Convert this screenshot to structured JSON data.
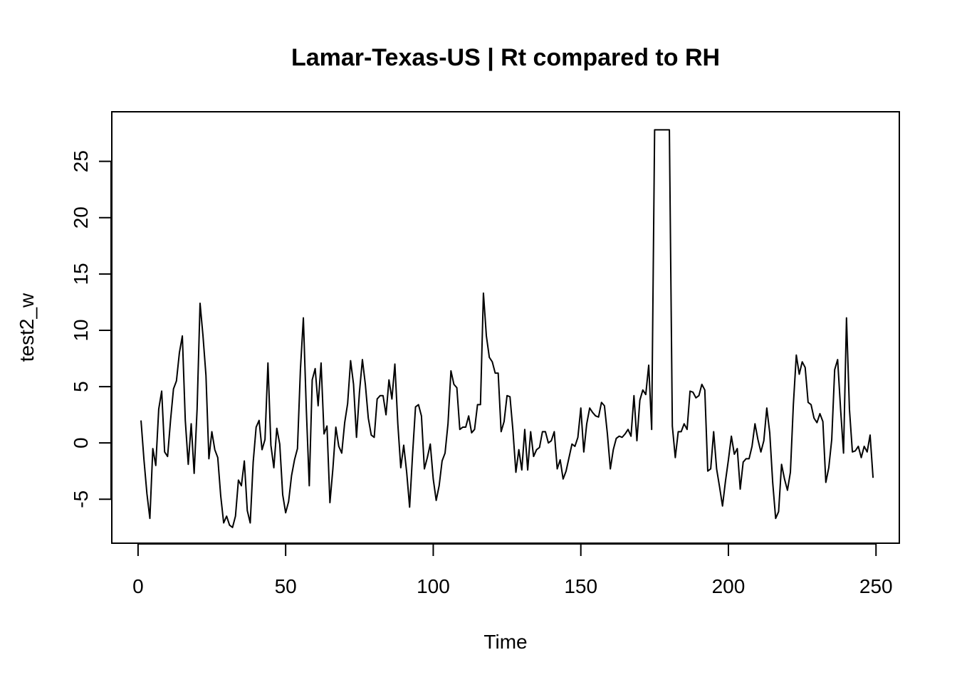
{
  "chart_data": {
    "type": "line",
    "title": "Lamar-Texas-US | Rt compared to RH",
    "xlabel": "Time",
    "ylabel": "test2_w",
    "xlim": [
      -8.9,
      257.9
    ],
    "ylim": [
      -8.9,
      29.4
    ],
    "x_ticks": [
      0,
      50,
      100,
      150,
      200,
      250
    ],
    "y_ticks": [
      -5,
      0,
      5,
      10,
      15,
      20,
      25
    ],
    "x_tick_labels": [
      "0",
      "50",
      "100",
      "150",
      "200",
      "250"
    ],
    "y_tick_labels": [
      "-5",
      "0",
      "5",
      "10",
      "15",
      "20",
      "25"
    ],
    "grid": false,
    "legend": "none",
    "line_color": "#000000",
    "series": [
      {
        "x_start": 1,
        "values": [
          2.0,
          -1.5,
          -4.5,
          -6.7,
          -0.5,
          -2.0,
          3.0,
          4.6,
          -0.8,
          -1.2,
          2.0,
          4.8,
          5.5,
          8.0,
          9.5,
          2.0,
          -1.9,
          1.7,
          -2.7,
          3.0,
          12.4,
          9.5,
          6.0,
          -1.4,
          1.0,
          -0.6,
          -1.3,
          -4.7,
          -7.1,
          -6.5,
          -7.3,
          -7.5,
          -6.5,
          -3.3,
          -3.8,
          -1.6,
          -6.0,
          -7.1,
          -1.7,
          1.4,
          2.0,
          -0.6,
          0.3,
          7.1,
          -0.2,
          -2.2,
          1.3,
          -0.1,
          -4.6,
          -6.2,
          -5.2,
          -2.9,
          -1.5,
          -0.5,
          6.5,
          11.1,
          3.0,
          -3.8,
          5.6,
          6.6,
          3.3,
          7.1,
          0.8,
          1.5,
          -5.3,
          -2.3,
          1.4,
          -0.3,
          -0.9,
          1.8,
          3.5,
          7.3,
          5.2,
          0.5,
          4.5,
          7.4,
          5.2,
          2.2,
          0.7,
          0.5,
          3.9,
          4.2,
          4.2,
          2.5,
          5.6,
          3.9,
          7.0,
          1.7,
          -2.2,
          -0.2,
          -2.6,
          -5.7,
          -1.0,
          3.2,
          3.4,
          2.4,
          -2.3,
          -1.3,
          -0.1,
          -3.2,
          -5.1,
          -3.8,
          -1.6,
          -0.9,
          1.7,
          6.4,
          5.2,
          4.9,
          1.2,
          1.4,
          1.4,
          2.4,
          0.9,
          1.2,
          3.4,
          3.4,
          13.3,
          9.5,
          7.6,
          7.2,
          6.2,
          6.2,
          1.0,
          1.9,
          4.2,
          4.1,
          1.1,
          -2.6,
          -0.6,
          -2.4,
          1.2,
          -2.4,
          1.0,
          -1.2,
          -0.6,
          -0.4,
          1.0,
          1.0,
          0.0,
          0.2,
          1.0,
          -2.3,
          -1.5,
          -3.2,
          -2.5,
          -1.3,
          -0.1,
          -0.3,
          0.5,
          3.1,
          -0.8,
          1.7,
          3.1,
          2.7,
          2.4,
          2.3,
          3.6,
          3.3,
          0.8,
          -2.3,
          -0.6,
          0.4,
          0.6,
          0.5,
          0.8,
          1.2,
          0.6,
          4.2,
          0.2,
          3.8,
          4.7,
          4.3,
          6.9,
          1.2,
          27.8,
          27.8,
          27.8,
          27.8,
          27.8,
          27.8,
          1.5,
          -1.3,
          1.0,
          1.0,
          1.7,
          1.2,
          4.6,
          4.5,
          4.0,
          4.2,
          5.2,
          4.7,
          -2.5,
          -2.3,
          1.0,
          -2.3,
          -3.9,
          -5.6,
          -3.4,
          -1.5,
          0.6,
          -1.0,
          -0.5,
          -4.1,
          -1.7,
          -1.4,
          -1.4,
          -0.3,
          1.7,
          0.3,
          -0.8,
          0.2,
          3.1,
          0.9,
          -3.5,
          -6.7,
          -6.1,
          -1.9,
          -3.2,
          -4.2,
          -2.6,
          3.4,
          7.8,
          6.1,
          7.2,
          6.7,
          3.6,
          3.4,
          2.2,
          1.8,
          2.6,
          1.9,
          -3.5,
          -2.2,
          0.3,
          6.5,
          7.4,
          3.0,
          -0.9,
          11.1,
          3.0,
          -0.8,
          -0.7,
          -0.3,
          -1.3,
          -0.3,
          -0.8,
          0.7,
          -3.1
        ]
      }
    ]
  }
}
